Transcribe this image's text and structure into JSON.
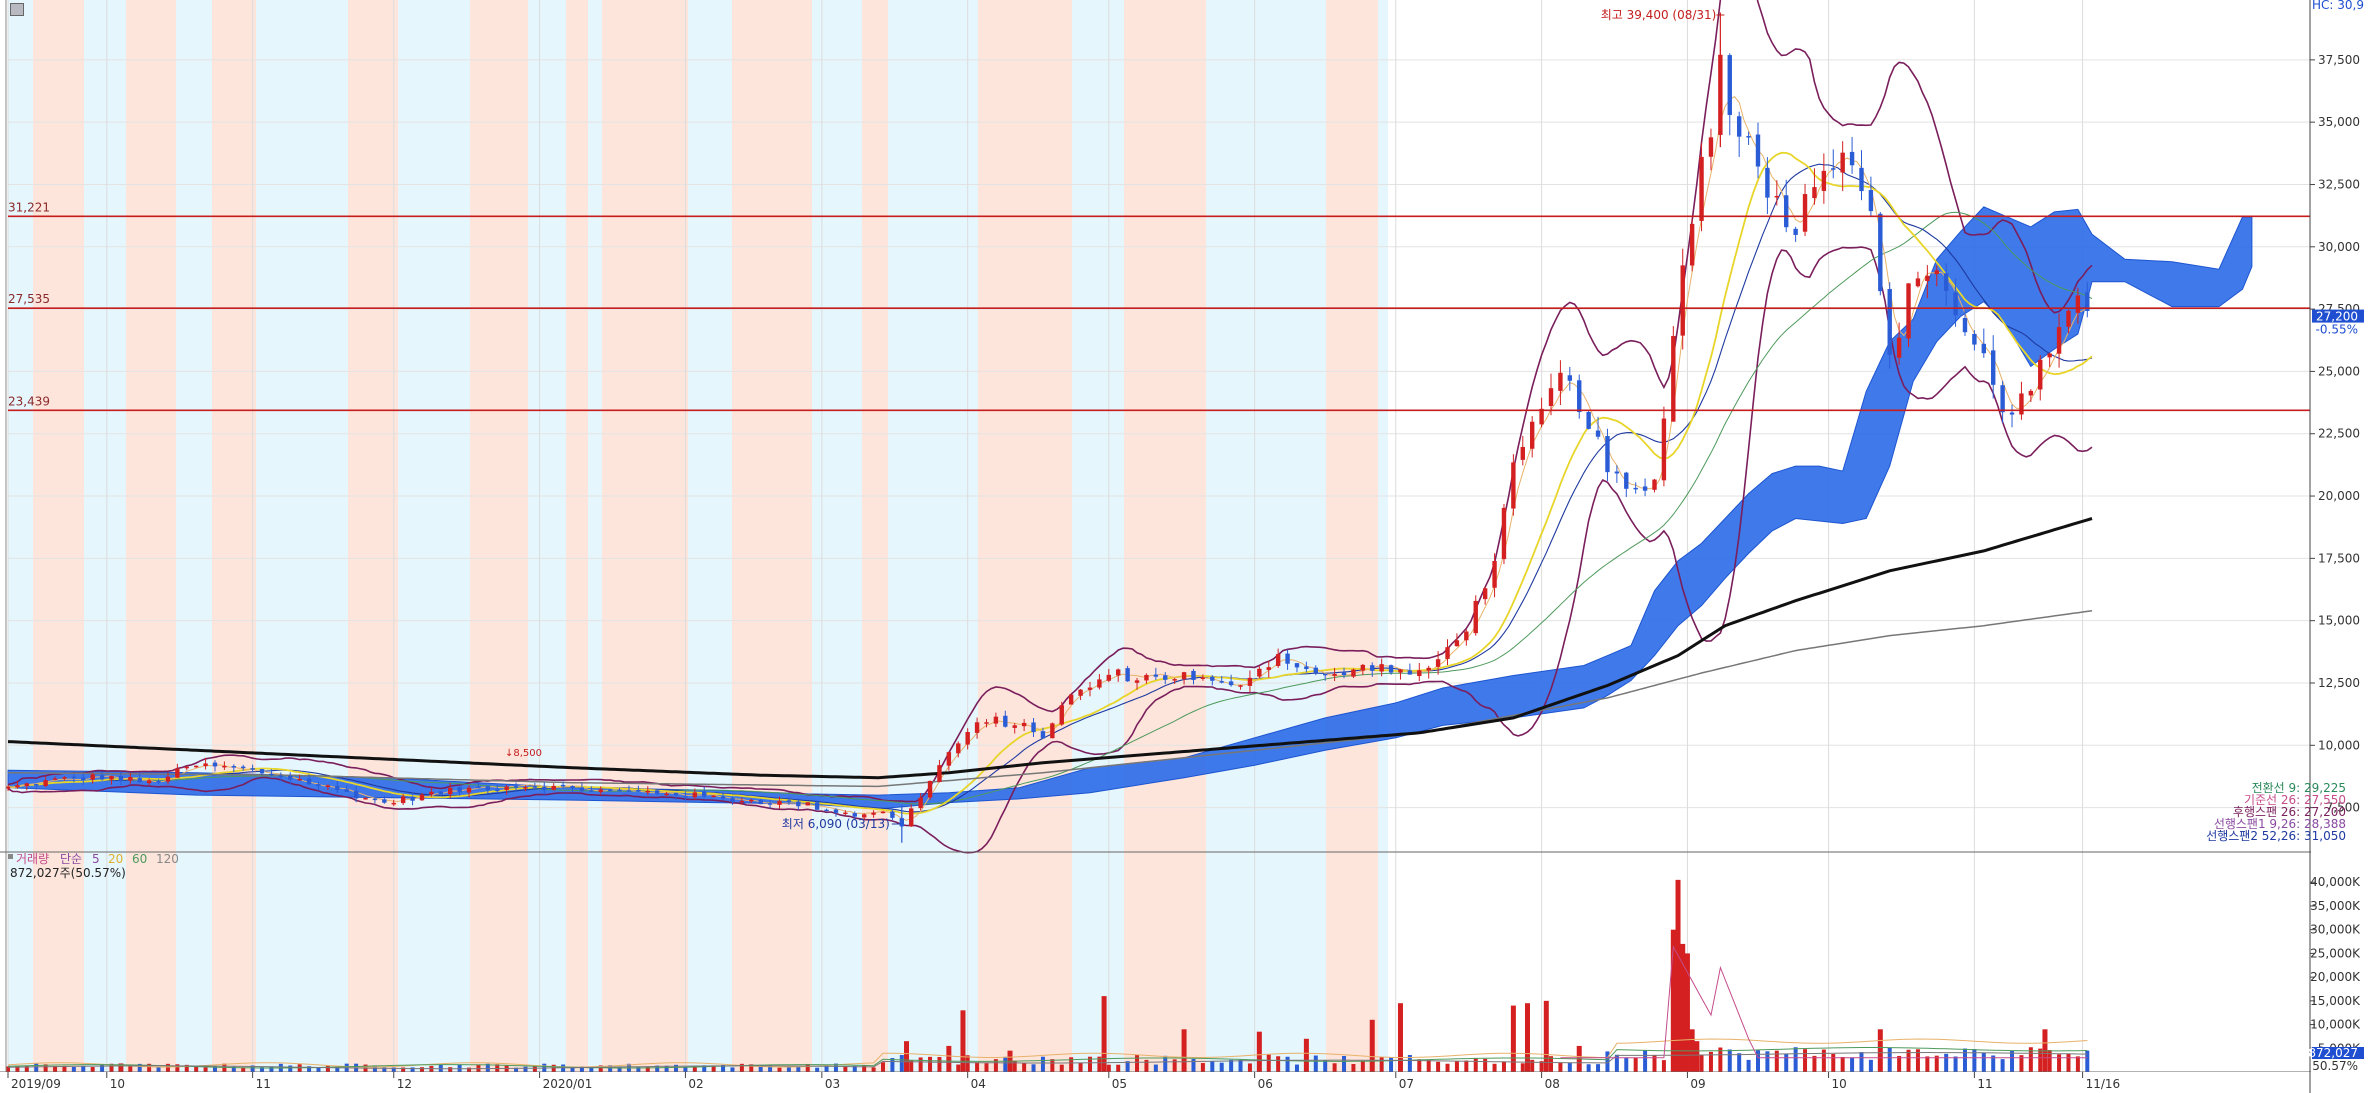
{
  "toolbar": {
    "menu_icon": "menu-icon"
  },
  "colors": {
    "up": "#d42020",
    "down": "#2a5cd6",
    "cloud": "#2f6ee8",
    "band_pink": "#fde5dc",
    "band_blue": "#e6f6fd",
    "level": "#c51d1d",
    "ma5": "#d84a4a",
    "ma20": "#e8d52a",
    "ma60": "#4e9a5c",
    "ma120": "#777777",
    "ma224": "#111111",
    "bollinger": "#7a1e5c",
    "baseline": "#1f3aa0"
  },
  "chart_data": {
    "type": "line",
    "title": "",
    "top_right_label": "HC: 30,9",
    "price_axis": {
      "ylim": [
        6000,
        39500
      ],
      "ticks": [
        "37,500",
        "35,000",
        "32,500",
        "30,000",
        "27,500",
        "25,000",
        "22,500",
        "20,000",
        "17,500",
        "15,000",
        "12,500",
        "10,000",
        "7,500"
      ],
      "tick_values": [
        37500,
        35000,
        32500,
        30000,
        27500,
        25000,
        22500,
        20000,
        17500,
        15000,
        12500,
        10000,
        7500
      ],
      "last_price_badge": "27,200",
      "last_change": "-0.55%"
    },
    "time_axis": {
      "labels": [
        "2019/09",
        "10",
        "11",
        "12",
        "2020/01",
        "02",
        "03",
        "04",
        "05",
        "06",
        "07",
        "08",
        "09",
        "10",
        "11",
        "11/16"
      ],
      "label_days": [
        0,
        21,
        52,
        82,
        113,
        144,
        173,
        204,
        234,
        265,
        295,
        326,
        357,
        387,
        418,
        441
      ]
    },
    "horizontal_levels": [
      {
        "label": "31,221",
        "value": 31221
      },
      {
        "label": "27,535",
        "value": 27535
      },
      {
        "label": "23,439",
        "value": 23439
      }
    ],
    "annotations": {
      "high": {
        "label": "최고 39,400 (08/31)",
        "value": 39400,
        "day": 364
      },
      "low": {
        "label": "최저 6,090 (03/13)",
        "value": 6090,
        "day": 190
      },
      "marker_label": "↓8,500"
    },
    "price_keypoints": {
      "day": [
        0,
        10,
        20,
        30,
        40,
        50,
        60,
        70,
        80,
        90,
        100,
        110,
        120,
        130,
        140,
        150,
        160,
        170,
        180,
        185,
        190,
        195,
        200,
        205,
        210,
        215,
        220,
        225,
        230,
        235,
        240,
        250,
        260,
        270,
        280,
        290,
        300,
        305,
        310,
        315,
        320,
        325,
        330,
        335,
        340,
        345,
        350,
        355,
        360,
        362,
        364,
        366,
        370,
        375,
        380,
        385,
        390,
        395,
        400,
        405,
        410,
        415,
        420,
        425,
        430,
        435,
        440,
        443
      ],
      "close": [
        8300,
        8600,
        8750,
        8500,
        9200,
        9050,
        8700,
        8200,
        7700,
        8050,
        8300,
        8400,
        8250,
        8150,
        8100,
        7900,
        7750,
        7600,
        7200,
        7400,
        6800,
        8300,
        9700,
        10700,
        11000,
        10800,
        10400,
        11800,
        12400,
        12900,
        12700,
        12800,
        12300,
        13600,
        12700,
        13200,
        12800,
        13600,
        14800,
        16800,
        21000,
        23000,
        24800,
        23500,
        21000,
        20000,
        20500,
        28000,
        33500,
        34200,
        38000,
        35800,
        34000,
        32100,
        30800,
        33200,
        34000,
        32400,
        25400,
        28800,
        29200,
        26800,
        25500,
        23200,
        24300,
        26200,
        27600,
        27200
      ]
    },
    "moving_averages": {
      "legend": [
        "거래량",
        "단순",
        "5",
        "20",
        "60",
        "120"
      ]
    },
    "ma224_keypoints": {
      "day": [
        0,
        40,
        80,
        120,
        160,
        185,
        200,
        220,
        240,
        260,
        280,
        300,
        320,
        340,
        355,
        365,
        380,
        400,
        420,
        443
      ],
      "value": [
        10150,
        9800,
        9450,
        9100,
        8800,
        8700,
        8900,
        9300,
        9600,
        9900,
        10200,
        10500,
        11100,
        12400,
        13600,
        14800,
        15800,
        17000,
        17800,
        19100
      ]
    },
    "ma120_keypoints": {
      "day": [
        0,
        60,
        120,
        185,
        220,
        260,
        300,
        340,
        360,
        380,
        400,
        420,
        443
      ],
      "value": [
        8900,
        8800,
        8500,
        8350,
        8900,
        9700,
        10500,
        11900,
        12900,
        13800,
        14400,
        14800,
        15400
      ]
    },
    "ichimoku_legend": [
      {
        "label": "전환선 9: 29,225",
        "color": "#2a8a5a"
      },
      {
        "label": "기준선 26: 27,550",
        "color": "#c54b8a"
      },
      {
        "label": "후행스팬 26: 27,200",
        "color": "#7a1e5c"
      },
      {
        "label": "선행스팬1 9,26: 28,388",
        "color": "#8a4aa0"
      },
      {
        "label": "선행스팬2 52,26: 31,050",
        "color": "#1f3aa0"
      }
    ],
    "volume_axis": {
      "ylim": [
        0,
        43000
      ],
      "ticks": [
        "40,000K",
        "35,000K",
        "30,000K",
        "25,000K",
        "20,000K",
        "15,000K",
        "10,000K",
        "5,000K"
      ],
      "tick_values": [
        40000,
        35000,
        30000,
        25000,
        20000,
        15000,
        10000,
        5000
      ],
      "last_badge": "872,027",
      "last_pct": "50.57%"
    },
    "volume_legend": {
      "items": [
        "거래량",
        "단순",
        "5",
        "20",
        "60",
        "120"
      ],
      "current": "872,027주(50.57%)"
    },
    "volume_spikes": {
      "day": [
        24,
        191,
        200,
        203,
        213,
        233,
        250,
        266,
        276,
        290,
        296,
        320,
        323,
        327,
        334,
        354,
        355,
        356,
        357,
        358,
        359,
        398,
        433
      ],
      "value": [
        1800,
        6500,
        5500,
        13000,
        4500,
        16000,
        9000,
        8500,
        7000,
        11000,
        14500,
        14000,
        14500,
        15000,
        5500,
        30000,
        40500,
        27000,
        25000,
        9000,
        6500,
        9000,
        9000
      ]
    }
  }
}
